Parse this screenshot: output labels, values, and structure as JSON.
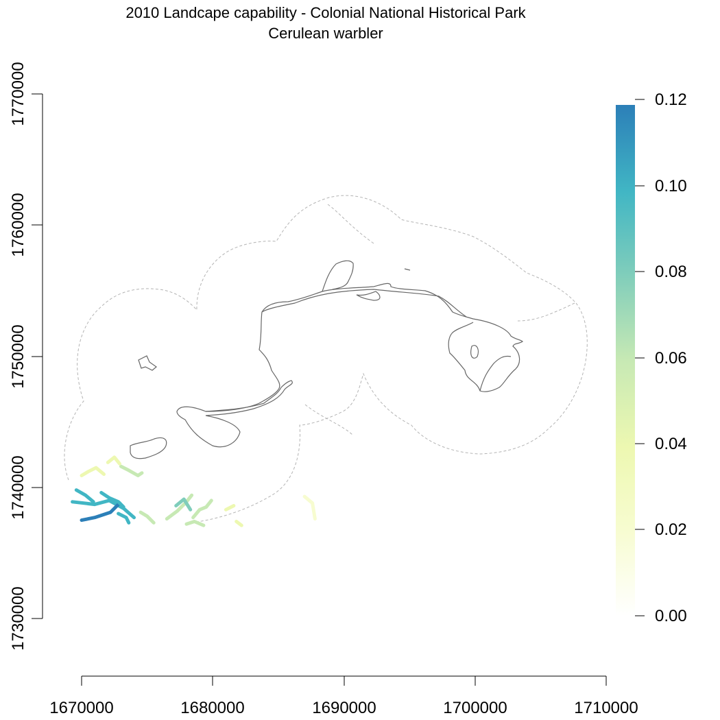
{
  "title": {
    "line1": "2010 Landcape capability - Colonial National Historical Park",
    "line2": "Cerulean warbler"
  },
  "map": {
    "xlim": [
      1670000,
      1710000
    ],
    "ylim": [
      1730000,
      1770000
    ],
    "x_ticks": [
      "1670000",
      "1680000",
      "1690000",
      "1700000",
      "1710000"
    ],
    "y_ticks": [
      "1730000",
      "1740000",
      "1750000",
      "1760000",
      "1770000"
    ]
  },
  "legend": {
    "range": [
      0.0,
      0.12
    ],
    "ticks": [
      "0.00",
      "0.02",
      "0.04",
      "0.06",
      "0.08",
      "0.10",
      "0.12"
    ],
    "colors": [
      "#ffffff",
      "#f7fcd0",
      "#edf8b1",
      "#c7e9b4",
      "#7fcdbb",
      "#41b6c4",
      "#2c7fb8"
    ]
  },
  "chart_data": {
    "type": "heatmap",
    "title": "2010 Landcape capability - Colonial National Historical Park",
    "subtitle": "Cerulean warbler",
    "xlabel": "",
    "ylabel": "",
    "xlim": [
      1670000,
      1710000
    ],
    "ylim": [
      1730000,
      1770000
    ],
    "value_range": [
      0.0,
      0.12
    ],
    "colors": {
      "buffer_outline": "#b3b3b3",
      "park_outline": "#666666"
    },
    "habitat_patches": [
      {
        "x": [
          1669300,
          1671000,
          1672100,
          1673200,
          1674000
        ],
        "y": [
          1738900,
          1738700,
          1739000,
          1738400,
          1737700
        ],
        "value": 0.105
      },
      {
        "x": [
          1670000,
          1671000,
          1672200,
          1672900
        ],
        "y": [
          1737500,
          1737700,
          1738100,
          1738800
        ],
        "value": 0.11
      },
      {
        "x": [
          1669600,
          1670300,
          1670900
        ],
        "y": [
          1739800,
          1739400,
          1738900
        ],
        "value": 0.095
      },
      {
        "x": [
          1671500,
          1672100,
          1672800,
          1673200
        ],
        "y": [
          1739600,
          1739200,
          1738900,
          1738500
        ],
        "value": 0.09
      },
      {
        "x": [
          1672800,
          1673400,
          1673600
        ],
        "y": [
          1738000,
          1737700,
          1737300
        ],
        "value": 0.1
      },
      {
        "x": [
          1670000,
          1670500,
          1671100,
          1671700
        ],
        "y": [
          1740900,
          1741200,
          1741500,
          1741000
        ],
        "value": 0.04
      },
      {
        "x": [
          1673000,
          1673600,
          1674300,
          1674600
        ],
        "y": [
          1741600,
          1741300,
          1740900,
          1741100
        ],
        "value": 0.05
      },
      {
        "x": [
          1672000,
          1672500,
          1672900
        ],
        "y": [
          1741900,
          1742300,
          1741800
        ],
        "value": 0.035
      },
      {
        "x": [
          1674500,
          1675000,
          1675500
        ],
        "y": [
          1738100,
          1737800,
          1737300
        ],
        "value": 0.06
      },
      {
        "x": [
          1676500,
          1677300,
          1678000,
          1678400
        ],
        "y": [
          1737600,
          1738200,
          1738900,
          1739400
        ],
        "value": 0.065
      },
      {
        "x": [
          1677200,
          1677800,
          1678300
        ],
        "y": [
          1738600,
          1739100,
          1738300
        ],
        "value": 0.07
      },
      {
        "x": [
          1678500,
          1679000,
          1679500,
          1679900
        ],
        "y": [
          1737700,
          1738300,
          1738500,
          1739000
        ],
        "value": 0.06
      },
      {
        "x": [
          1678000,
          1678600,
          1679300
        ],
        "y": [
          1737200,
          1737400,
          1737100
        ],
        "value": 0.055
      },
      {
        "x": [
          1681000,
          1681600
        ],
        "y": [
          1738300,
          1738600
        ],
        "value": 0.04
      },
      {
        "x": [
          1681800,
          1682200
        ],
        "y": [
          1737400,
          1737100
        ],
        "value": 0.03
      },
      {
        "x": [
          1687000,
          1687600,
          1687800
        ],
        "y": [
          1739300,
          1738800,
          1737600
        ],
        "value": 0.02
      }
    ]
  }
}
